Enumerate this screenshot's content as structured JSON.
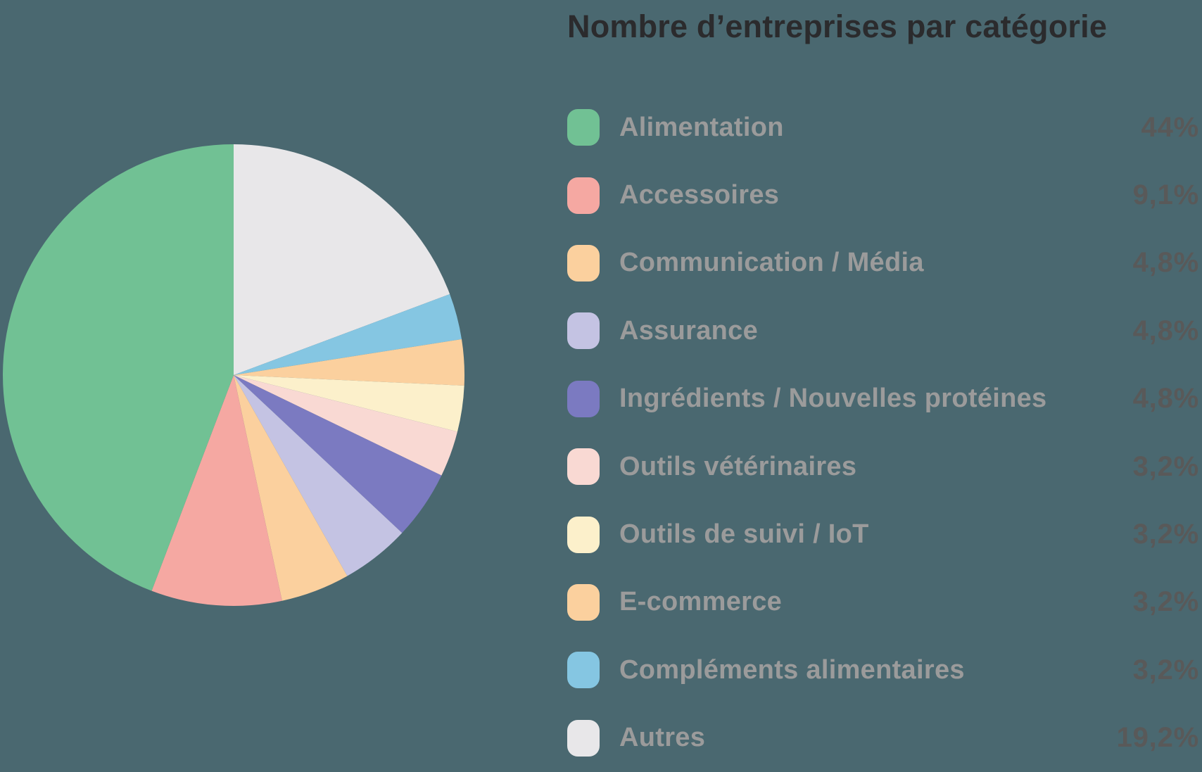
{
  "theme": {
    "background": "#4A6870",
    "title_color": "#2B2B2D",
    "legend_label_color": "#9B9B9B",
    "legend_value_color": "#595959"
  },
  "title": {
    "text": "Nombre d’entreprises par catégorie"
  },
  "chart_data": {
    "type": "pie",
    "title": "Nombre d’entreprises par catégorie",
    "legend_position": "right",
    "start_angle": "top",
    "direction": "counterclockwise",
    "categories": [
      "Alimentation",
      "Accessoires",
      "Communication / Média",
      "Assurance",
      "Ingrédients / Nouvelles protéines",
      "Outils vétérinaires",
      "Outils de suivi / IoT",
      "E-commerce",
      "Compléments alimentaires",
      "Autres"
    ],
    "values": [
      44,
      9.1,
      4.8,
      4.8,
      4.8,
      3.2,
      3.2,
      3.2,
      3.2,
      19.2
    ],
    "value_labels": [
      "44%",
      "9,1%",
      "4,8%",
      "4,8%",
      "4,8%",
      "3,2%",
      "3,2%",
      "3,2%",
      "3,2%",
      "19,2%"
    ],
    "colors": [
      "#71C194",
      "#F5A8A2",
      "#FBD09E",
      "#C4C3E3",
      "#7B7AC1",
      "#F9D9D3",
      "#FCF0CB",
      "#FBD09E",
      "#85C6E2",
      "#E8E7E9"
    ]
  }
}
